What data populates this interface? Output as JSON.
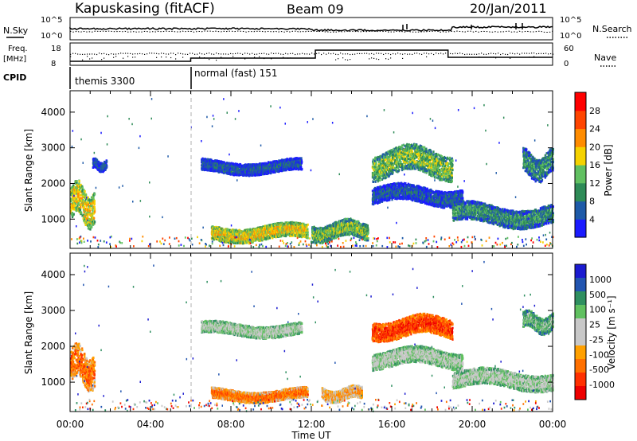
{
  "header": {
    "station": "Kapuskasing (fitACF)",
    "beam": "Beam 09",
    "date": "20/Jan/2011"
  },
  "top_panels": {
    "nsky": {
      "label": "N.Sky",
      "ticks": [
        "10^5",
        "10^0"
      ]
    },
    "nsearch": {
      "label": "N.Search",
      "ticks": [
        "10^5",
        "10^0"
      ]
    },
    "freq": {
      "label_line1": "Freq.",
      "label_line2": "[MHz]",
      "ticks": [
        "18",
        "8"
      ]
    },
    "nave": {
      "label": "Nave",
      "ticks": [
        "60",
        "0"
      ]
    },
    "cpid": {
      "label": "CPID",
      "modes": [
        {
          "name": "themis 3300",
          "start_hour": 0
        },
        {
          "name": "normal (fast) 151",
          "start_hour": 6
        }
      ]
    }
  },
  "colors": {
    "power": [
      "#1b1bff",
      "#1e5aa8",
      "#2e8b57",
      "#61c061",
      "#f5d200",
      "#ff8c00",
      "#ff4500",
      "#ff0000"
    ],
    "velocity": [
      "#1b1bd0",
      "#2255b0",
      "#2f8f60",
      "#60c060",
      "#c8c8c8",
      "#c8c8c8",
      "#ffa000",
      "#ff7000",
      "#ff3000",
      "#ee0000"
    ]
  },
  "chart_data": [
    {
      "type": "heatmap",
      "name": "power",
      "ylabel": "Slant Range [km]",
      "yticks": [
        "1000",
        "2000",
        "3000",
        "4000"
      ],
      "ylim": [
        180,
        4600
      ],
      "xlim": [
        0,
        24
      ],
      "colorbar": {
        "label": "Power [dB]",
        "ticks": [
          "4",
          "8",
          "12",
          "16",
          "20",
          "24",
          "28"
        ]
      },
      "echo_bands": [
        {
          "t0": 0.0,
          "t1": 1.2,
          "r0": 700,
          "r1": 2100,
          "level": 4
        },
        {
          "t0": 1.1,
          "t1": 1.8,
          "r0": 2300,
          "r1": 2700,
          "level": 1
        },
        {
          "t0": 6.5,
          "t1": 11.5,
          "r0": 2200,
          "r1": 2700,
          "level": 1
        },
        {
          "t0": 7.0,
          "t1": 11.8,
          "r0": 300,
          "r1": 900,
          "level": 4
        },
        {
          "t0": 12.0,
          "t1": 14.8,
          "r0": 300,
          "r1": 1000,
          "level": 3
        },
        {
          "t0": 15.0,
          "t1": 19.0,
          "r0": 2000,
          "r1": 3100,
          "level": 3
        },
        {
          "t0": 15.0,
          "t1": 19.5,
          "r0": 1300,
          "r1": 2000,
          "level": 1
        },
        {
          "t0": 19.0,
          "t1": 24.0,
          "r0": 700,
          "r1": 1500,
          "level": 2
        },
        {
          "t0": 22.5,
          "t1": 24.0,
          "r0": 2000,
          "r1": 3000,
          "level": 2
        }
      ]
    },
    {
      "type": "heatmap",
      "name": "velocity",
      "ylabel": "Slant Range [km]",
      "xlabel": "Time UT",
      "xticks": [
        "00:00",
        "04:00",
        "08:00",
        "12:00",
        "16:00",
        "20:00",
        "00:00"
      ],
      "yticks": [
        "1000",
        "2000",
        "3000",
        "4000"
      ],
      "ylim": [
        180,
        4600
      ],
      "xlim": [
        0,
        24
      ],
      "colorbar": {
        "label": "Velocity [m s⁻¹]",
        "ticks": [
          "1000",
          "500",
          "100",
          "25",
          "-25",
          "-100",
          "-500",
          "-1000"
        ]
      },
      "echo_bands": [
        {
          "t0": 0.0,
          "t1": 1.2,
          "r0": 700,
          "r1": 2100,
          "level": 7
        },
        {
          "t0": 6.5,
          "t1": 11.5,
          "r0": 2200,
          "r1": 2700,
          "level": 4
        },
        {
          "t0": 7.0,
          "t1": 11.8,
          "r0": 400,
          "r1": 850,
          "level": 7
        },
        {
          "t0": 12.5,
          "t1": 14.5,
          "r0": 400,
          "r1": 900,
          "level": 6
        },
        {
          "t0": 15.0,
          "t1": 19.0,
          "r0": 2100,
          "r1": 2900,
          "level": 8
        },
        {
          "t0": 15.0,
          "t1": 19.5,
          "r0": 1300,
          "r1": 2000,
          "level": 4
        },
        {
          "t0": 19.0,
          "t1": 24.0,
          "r0": 700,
          "r1": 1400,
          "level": 4
        },
        {
          "t0": 22.5,
          "t1": 24.0,
          "r0": 2300,
          "r1": 3000,
          "level": 3
        }
      ]
    }
  ]
}
